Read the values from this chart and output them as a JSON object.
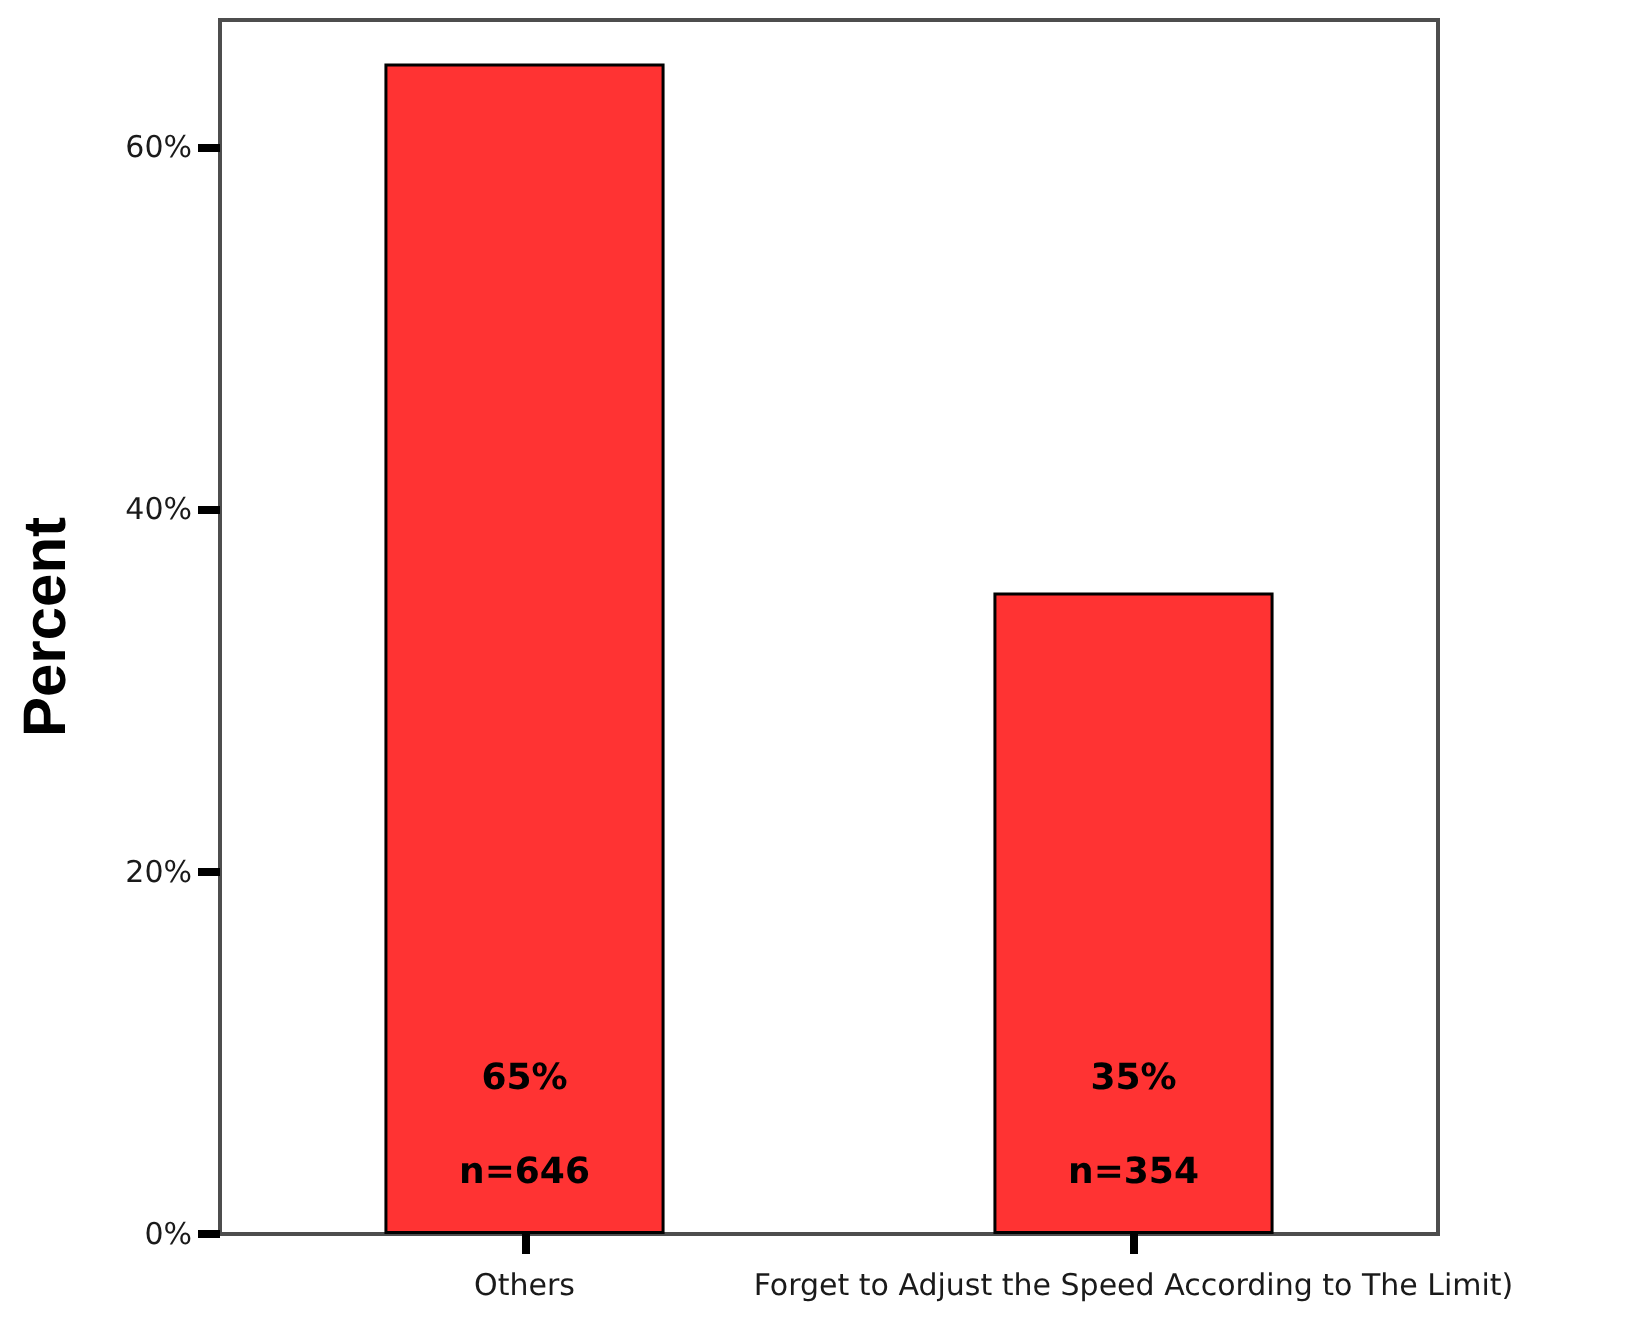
{
  "chart_data": {
    "type": "bar",
    "ylabel": "Percent",
    "categories": [
      "Others",
      "Forget to Adjust the Speed According to The Limit)"
    ],
    "values": [
      64.6,
      35.4
    ],
    "color": "#ff3333",
    "value_labels": [
      "65%",
      "35%"
    ],
    "annotations": [
      "n=646",
      "n=354"
    ],
    "ylim": [
      0,
      67
    ],
    "yticks": [
      {
        "value": 0,
        "label": "0%"
      },
      {
        "value": 20,
        "label": "20%"
      },
      {
        "value": 40,
        "label": "40%"
      },
      {
        "value": 60,
        "label": "60%"
      }
    ],
    "grid": false
  }
}
